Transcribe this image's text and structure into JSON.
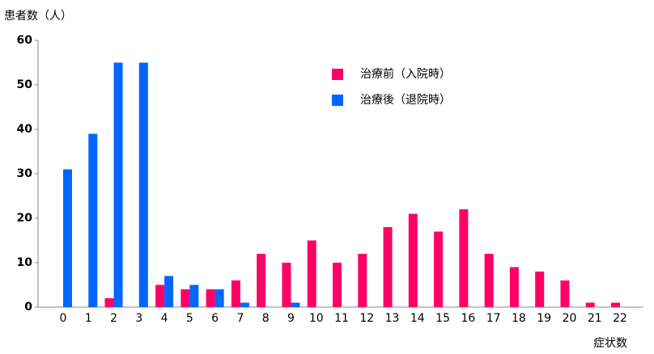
{
  "chart_data": {
    "type": "bar",
    "y_label": "患者数（人）",
    "x_label": "症状数",
    "categories": [
      "0",
      "1",
      "2",
      "3",
      "4",
      "5",
      "6",
      "7",
      "8",
      "9",
      "10",
      "11",
      "12",
      "13",
      "14",
      "15",
      "16",
      "17",
      "18",
      "19",
      "20",
      "21",
      "22"
    ],
    "series": [
      {
        "name": "治療前（入院時）",
        "color": "#ff0066",
        "values": [
          0,
          0,
          2,
          0,
          5,
          4,
          4,
          6,
          12,
          10,
          15,
          10,
          12,
          18,
          21,
          17,
          22,
          12,
          9,
          8,
          6,
          1,
          1
        ]
      },
      {
        "name": "治療後（退院時）",
        "color": "#0066ff",
        "values": [
          31,
          39,
          55,
          55,
          7,
          5,
          4,
          1,
          0,
          1,
          0,
          0,
          0,
          0,
          0,
          0,
          0,
          0,
          0,
          0,
          0,
          0,
          0
        ]
      }
    ],
    "ylim": [
      0,
      60
    ],
    "yticks": [
      0,
      10,
      20,
      30,
      40,
      50,
      60
    ],
    "grid": false,
    "legend": "top-center"
  }
}
